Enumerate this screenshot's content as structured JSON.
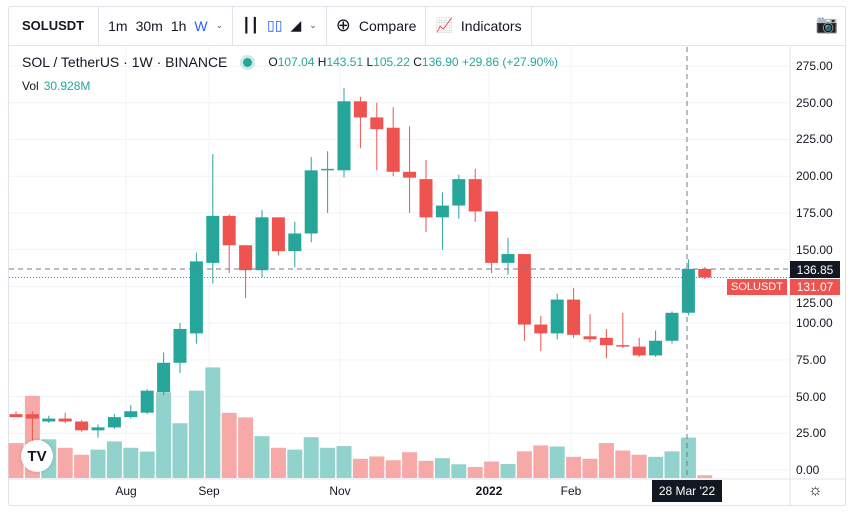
{
  "toolbar": {
    "symbol": "SOLUSDT",
    "intervals": [
      "1m",
      "30m",
      "1h",
      "W"
    ],
    "active_interval": "W",
    "compare": "Compare",
    "indicators": "Indicators"
  },
  "legend": {
    "title": "SOL / TetherUS · 1W · BINANCE",
    "o_label": "O",
    "o": "107.04",
    "h_label": "H",
    "h": "143.51",
    "l_label": "L",
    "l": "105.22",
    "c_label": "C",
    "c": "136.90",
    "change": "+29.86 (+27.90%)"
  },
  "volume": {
    "label": "Vol",
    "value": "30.928M"
  },
  "price_labels": {
    "crosshair": "136.85",
    "last": "131.07",
    "symbol": "SOLUSDT"
  },
  "crosshair_date": "28 Mar '22",
  "colors": {
    "up": "#26a69a",
    "down": "#ef5350",
    "vol_up": "#92d2cc",
    "vol_down": "#f7a9a7"
  },
  "chart_data": {
    "type": "candlestick",
    "y_ticks": [
      "275.00",
      "250.00",
      "225.00",
      "200.00",
      "175.00",
      "150.00",
      "125.00",
      "100.00",
      "75.00",
      "50.00",
      "25.00",
      "0.00"
    ],
    "ylim": [
      0,
      275
    ],
    "x_ticks": [
      "Aug",
      "Sep",
      "Nov",
      "2022",
      "Feb"
    ],
    "candles": [
      [
        38,
        40,
        36,
        36
      ],
      [
        38,
        40,
        14,
        35
      ],
      [
        33,
        37,
        32,
        35
      ],
      [
        35,
        39,
        32,
        33
      ],
      [
        33,
        34,
        26,
        27
      ],
      [
        27,
        31,
        22,
        29
      ],
      [
        29,
        38,
        28,
        36
      ],
      [
        36,
        44,
        35,
        40
      ],
      [
        39,
        55,
        38,
        54
      ],
      [
        53,
        80,
        51,
        73
      ],
      [
        73,
        100,
        66,
        96
      ],
      [
        93,
        148,
        86,
        142
      ],
      [
        141,
        215,
        127,
        173
      ],
      [
        173,
        174,
        134,
        153
      ],
      [
        153,
        153,
        117,
        136
      ],
      [
        136,
        177,
        131,
        172
      ],
      [
        172,
        172,
        146,
        149
      ],
      [
        149,
        169,
        138,
        161
      ],
      [
        161,
        213,
        155,
        204
      ],
      [
        204,
        217,
        175,
        205
      ],
      [
        204,
        260,
        199,
        251
      ],
      [
        251,
        254,
        219,
        240
      ],
      [
        240,
        250,
        204,
        232
      ],
      [
        233,
        247,
        200,
        203
      ],
      [
        203,
        234,
        175,
        199
      ],
      [
        198,
        211,
        162,
        172
      ],
      [
        172,
        189,
        150,
        180
      ],
      [
        180,
        201,
        171,
        198
      ],
      [
        198,
        205,
        169,
        176
      ],
      [
        176,
        176,
        134,
        141
      ],
      [
        141,
        158,
        133,
        147
      ],
      [
        147,
        147,
        88,
        99
      ],
      [
        99,
        105,
        81,
        93
      ],
      [
        93,
        120,
        89,
        116
      ],
      [
        116,
        124,
        90,
        92
      ],
      [
        91,
        106,
        87,
        89
      ],
      [
        90,
        96,
        76,
        85
      ],
      [
        85,
        107,
        83,
        84
      ],
      [
        84,
        90,
        77,
        78
      ],
      [
        78,
        95,
        77,
        88
      ],
      [
        88,
        108,
        86,
        107
      ],
      [
        107.04,
        143.51,
        105.22,
        136.9
      ],
      [
        136.9,
        138,
        130,
        131.07
      ]
    ],
    "volumes_millions": [
      26.7,
      62.9,
      29.6,
      23.1,
      17.8,
      21.7,
      28.0,
      23.1,
      20.2,
      65.5,
      41.9,
      66.8,
      84.6,
      49.8,
      46.4,
      32.0,
      23.1,
      21.7,
      31.2,
      23.1,
      24.4,
      14.7,
      16.5,
      13.6,
      19.7,
      13.1,
      15.2,
      10.5,
      8.4,
      12.6,
      10.7,
      20.4,
      24.9,
      24.1,
      16.2,
      14.7,
      26.7,
      21.0,
      17.8,
      16.2,
      20.4,
      30.928,
      2.1
    ],
    "grid": true
  }
}
